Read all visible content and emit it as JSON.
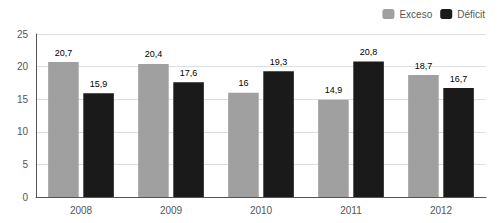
{
  "chart_data": {
    "type": "bar",
    "categories": [
      "2008",
      "2009",
      "2010",
      "2011",
      "2012"
    ],
    "series": [
      {
        "name": "Exceso",
        "color": "#a0a0a0",
        "values": [
          20.7,
          20.4,
          16.0,
          14.9,
          18.7
        ],
        "value_labels": [
          "20,7",
          "20,4",
          "16",
          "14,9",
          "18,7"
        ]
      },
      {
        "name": "Déficit",
        "color": "#1a1a1a",
        "values": [
          15.9,
          17.6,
          19.3,
          20.8,
          16.7
        ],
        "value_labels": [
          "15,9",
          "17,6",
          "19,3",
          "20,8",
          "16,7"
        ]
      }
    ],
    "ylim": [
      0,
      25
    ],
    "yticks": [
      0,
      5,
      10,
      15,
      20,
      25
    ],
    "grid": true,
    "legend": "upper right",
    "data_labels": true
  }
}
